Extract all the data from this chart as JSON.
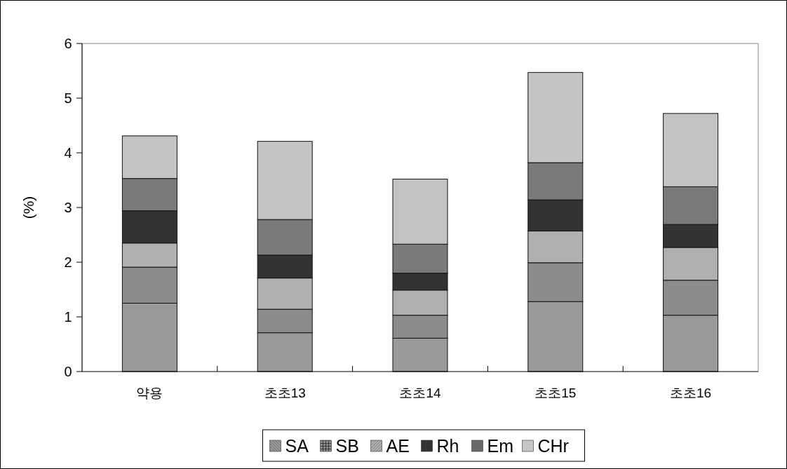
{
  "chart_data": {
    "type": "bar",
    "stacked": true,
    "ylabel": "(%)",
    "categories": [
      "약용",
      "초초13",
      "초초14",
      "초초15",
      "초초16"
    ],
    "series": [
      {
        "name": "SA",
        "color": "#9a9a9a",
        "values": [
          1.25,
          0.71,
          0.61,
          1.28,
          1.03
        ]
      },
      {
        "name": "SB",
        "color": "#8c8c8c",
        "values": [
          0.66,
          0.43,
          0.42,
          0.71,
          0.64
        ]
      },
      {
        "name": "AE",
        "color": "#b0b0b0",
        "values": [
          0.44,
          0.57,
          0.46,
          0.58,
          0.6
        ]
      },
      {
        "name": "Rh",
        "color": "#333333",
        "values": [
          0.59,
          0.42,
          0.31,
          0.57,
          0.42
        ]
      },
      {
        "name": "Em",
        "color": "#7a7a7a",
        "values": [
          0.59,
          0.65,
          0.53,
          0.68,
          0.69
        ]
      },
      {
        "name": "CHr",
        "color": "#c4c4c4",
        "values": [
          0.78,
          1.43,
          1.19,
          1.65,
          1.34
        ]
      }
    ],
    "ylim": [
      0,
      6
    ],
    "yticks": [
      0,
      1,
      2,
      3,
      4,
      5,
      6
    ],
    "grid": false,
    "legend": "bottom"
  }
}
